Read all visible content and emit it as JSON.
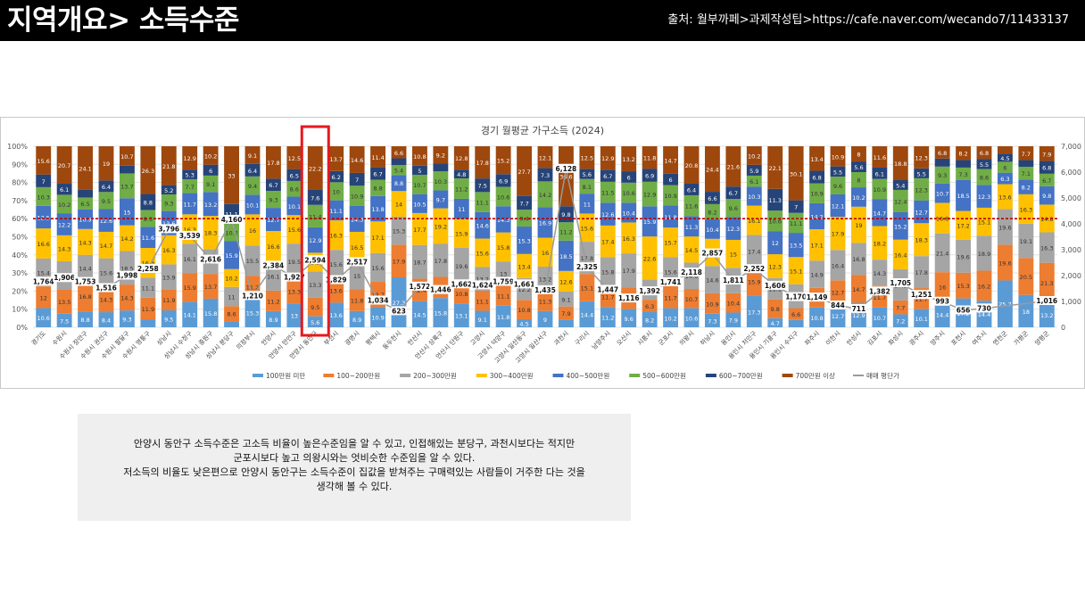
{
  "header": {
    "title": "지역개요> 소득수준",
    "source": "출처: 월부까페>과제작성팁>https://cafe.naver.com/wecando7/11433137"
  },
  "note": {
    "lines": [
      "안양시 동안구 소득수준은 고소득 비율이 높은수준임을 알 수 있고, 인접해있는 분당구, 과천시보다는 적지만",
      "군포시보다 높고 의왕시와는 엇비슷한 수준임을 알 수 있다.",
      "저소득의 비율도 낮은편으로 안양시 동안구는 소득수준이 집값을 받쳐주는 구매력있는 사람들이 거주한 다는 것을",
      "생각해 볼 수 있다."
    ]
  },
  "colors": {
    "highlight": "#e8181d",
    "avg_line": "#9a9a9a",
    "reference_line": "#c00000"
  },
  "chart_data": {
    "type": "bar",
    "stacked": true,
    "title": "경기 월평균 가구소득 (2024)",
    "y_left": {
      "ticks": [
        "0%",
        "10%",
        "20%",
        "30%",
        "40%",
        "50%",
        "60%",
        "70%",
        "80%",
        "90%",
        "100%"
      ],
      "range": [
        0,
        100
      ]
    },
    "y_right": {
      "ticks": [
        "0",
        "1,000",
        "2,000",
        "3,000",
        "4,000",
        "5,000",
        "6,000",
        "7,000"
      ],
      "range": [
        0,
        7000
      ]
    },
    "reference_line_pct": 60,
    "highlight_category": "안양시 동안구",
    "categories": [
      "경기도",
      "수원시",
      "수원시 장안구",
      "수원시 권선구",
      "수원시 팔달구",
      "수원시 영통구",
      "성남시",
      "성남시 수정구",
      "성남시 중원구",
      "성남시 분당구",
      "의정부시",
      "안양시",
      "안양시 만안구",
      "안양시 동안구",
      "부천시",
      "광명시",
      "평택시",
      "동두천시",
      "안산시",
      "안산시 상록구",
      "안산시 단원구",
      "고양시",
      "고양시 덕양구",
      "고양시 일산동구",
      "고양시 일산서구",
      "과천시",
      "구리시",
      "남양주시",
      "오산시",
      "시흥시",
      "군포시",
      "의왕시",
      "하남시",
      "용인시",
      "용인시 처인구",
      "용인시 기흥구",
      "용인시 수지구",
      "파주시",
      "이천시",
      "안성시",
      "김포시",
      "화성시",
      "광주시",
      "양주시",
      "포천시",
      "여주시",
      "연천군",
      "가평군",
      "양평군"
    ],
    "series": [
      {
        "name": "100만원 미만",
        "color": "#5b9bd5",
        "values": [
          10.6,
          7.5,
          8.8,
          8.4,
          9.3,
          4.4,
          9.5,
          14.1,
          15.8,
          3.5,
          15.3,
          8.9,
          13.0,
          5.6,
          13.6,
          8.9,
          10.9,
          27.3,
          14.5,
          15.8,
          13.1,
          9.1,
          11.8,
          4.5,
          9.0,
          4.8,
          14.4,
          11.2,
          9.6,
          8.2,
          10.2,
          10.6,
          7.3,
          7.9,
          17.3,
          4.7,
          4.1,
          10.8,
          12.7,
          12.9,
          10.7,
          7.2,
          10.1,
          14.4,
          17.2,
          14.4,
          25.7,
          18.0,
          13.2
        ]
      },
      {
        "name": "100~200만원",
        "color": "#ed7d31",
        "values": [
          12.0,
          13.5,
          16.8,
          14.3,
          14.3,
          11.9,
          11.9,
          15.9,
          13.7,
          8.6,
          11.2,
          11.2,
          13.3,
          9.5,
          13.6,
          11.8,
          13.7,
          17.9,
          12.4,
          11.4,
          10.8,
          11.1,
          11.1,
          10.8,
          11.3,
          7.9,
          15.1,
          11.7,
          11.5,
          6.3,
          11.7,
          10.7,
          10.9,
          10.4,
          15.9,
          9.8,
          6.6,
          10.7,
          12.7,
          14.7,
          11.7,
          7.7,
          11.7,
          16.0,
          15.3,
          16.2,
          19.6,
          20.5,
          21.3
        ]
      },
      {
        "name": "200~300만원",
        "color": "#a5a5a5",
        "values": [
          15.4,
          15.5,
          14.4,
          15.6,
          18.5,
          11.1,
          13.9,
          16.1,
          13.7,
          11.0,
          15.5,
          16.1,
          19.5,
          13.3,
          15.6,
          15.0,
          15.6,
          15.3,
          18.7,
          17.8,
          19.6,
          13.2,
          13.0,
          12.2,
          13.2,
          9.1,
          17.8,
          15.8,
          17.9,
          10.7,
          15.6,
          14.6,
          14.6,
          13.6,
          17.4,
          11.1,
          13.3,
          14.9,
          16.4,
          16.8,
          14.3,
          17.3,
          17.8,
          21.4,
          19.6,
          18.9,
          19.6,
          19.1,
          16.3
        ]
      },
      {
        "name": "300~400만원",
        "color": "#ffc000",
        "values": [
          16.6,
          14.3,
          14.3,
          14.7,
          14.2,
          16.3,
          16.3,
          16.3,
          18.3,
          10.2,
          16.0,
          16.6,
          15.6,
          9.5,
          16.3,
          16.5,
          17.1,
          14.0,
          17.7,
          19.2,
          15.9,
          15.6,
          15.8,
          13.4,
          16.0,
          12.6,
          15.6,
          17.4,
          16.3,
          22.6,
          15.7,
          14.5,
          14.6,
          15.0,
          16.1,
          12.3,
          15.1,
          17.1,
          17.9,
          19.0,
          18.2,
          16.4,
          18.3,
          16.8,
          17.2,
          15.1,
          13.6,
          16.3,
          14.8
        ]
      },
      {
        "name": "400~500만원",
        "color": "#4472c4",
        "values": [
          12.5,
          12.2,
          10.9,
          12.6,
          15.0,
          11.6,
          13.6,
          11.7,
          13.2,
          15.9,
          10.1,
          12.7,
          10.1,
          12.9,
          11.1,
          14.3,
          13.8,
          8.8,
          10.5,
          9.7,
          11.0,
          14.6,
          14.3,
          15.3,
          16.9,
          18.5,
          11.0,
          12.6,
          10.4,
          15.9,
          11.8,
          11.3,
          10.4,
          12.3,
          10.3,
          12.0,
          13.5,
          14.2,
          12.1,
          10.2,
          14.7,
          15.2,
          12.7,
          10.7,
          18.5,
          12.3,
          6.3,
          8.2,
          9.8
        ]
      },
      {
        "name": "500~600만원",
        "color": "#70ad47",
        "values": [
          10.3,
          10.2,
          6.5,
          9.5,
          13.7,
          9.3,
          9.3,
          7.7,
          9.1,
          10.2,
          9.4,
          9.3,
          8.6,
          11.4,
          10.0,
          10.9,
          8.8,
          5.4,
          10.7,
          10.3,
          11.2,
          11.1,
          10.6,
          9.4,
          14.2,
          11.2,
          8.1,
          11.5,
          10.6,
          12.9,
          10.9,
          11.6,
          8.2,
          9.6,
          6.1,
          10.6,
          11.1,
          10.9,
          9.6,
          8.0,
          10.9,
          12.4,
          12.3,
          9.3,
          7.3,
          8.6,
          6.0,
          7.1,
          6.7
        ]
      },
      {
        "name": "600~700만원",
        "color": "#264478",
        "values": [
          7.0,
          6.1,
          4.2,
          6.4,
          4.3,
          8.8,
          5.2,
          5.3,
          6.0,
          11.1,
          6.4,
          6.7,
          6.5,
          7.6,
          6.2,
          7.0,
          6.7,
          3.7,
          5.0,
          4.3,
          4.8,
          7.5,
          6.9,
          7.7,
          7.3,
          9.8,
          5.6,
          6.7,
          6.0,
          6.9,
          6.0,
          6.4,
          6.6,
          6.7,
          5.9,
          11.3,
          7.0,
          6.8,
          5.5,
          5.6,
          6.1,
          5.4,
          5.5,
          4.4,
          4.5,
          5.5,
          4.5,
          3.7,
          6.8
        ]
      },
      {
        "name": "700만원 이상",
        "color": "#9e480e",
        "values": [
          15.6,
          20.7,
          24.1,
          19.0,
          10.7,
          26.3,
          21.8,
          12.9,
          10.2,
          33.0,
          9.1,
          17.8,
          12.5,
          22.2,
          13.7,
          14.6,
          11.4,
          6.6,
          10.8,
          9.2,
          12.8,
          17.8,
          15.2,
          27.7,
          12.1,
          36.6,
          12.5,
          12.9,
          13.2,
          11.8,
          14.7,
          20.8,
          24.4,
          21.6,
          10.2,
          22.1,
          30.1,
          13.4,
          10.9,
          8.0,
          11.6,
          18.8,
          12.3,
          6.8,
          8.2,
          6.8,
          4.0,
          7.7,
          7.9
        ]
      }
    ],
    "line_series": {
      "name": "매매 평단가",
      "color": "#9a9a9a",
      "axis": "right",
      "values": [
        1764,
        1906,
        1753,
        1516,
        1998,
        2258,
        3796,
        3539,
        2616,
        4160,
        1210,
        2384,
        1927,
        2594,
        1829,
        2517,
        1034,
        623,
        1572,
        1446,
        1662,
        1624,
        1759,
        1661,
        1435,
        6128,
        2325,
        1447,
        1116,
        1392,
        1741,
        2118,
        2857,
        1811,
        2252,
        1606,
        1170,
        1149,
        844,
        711,
        1382,
        1705,
        1251,
        993,
        656,
        730,
        null,
        null,
        1016
      ],
      "labels": [
        "1,764",
        "1,906",
        "1,753",
        "1,516",
        "1,998",
        "2,258",
        "3,796",
        "3,539",
        "2,616",
        "4,160",
        "1,210",
        "2,384",
        "1,927",
        "2,594",
        "1,829",
        "2,517",
        "1,034",
        "623",
        "1,572",
        "1,446",
        "1,662",
        "1,624",
        "1,759",
        "1,661",
        "1,435",
        "6,128",
        "2,325",
        "1,447",
        "1,116",
        "1,392",
        "1,741",
        "2,118",
        "2,857",
        "1,811",
        "2,252",
        "1,606",
        "1,170",
        "1,149",
        "844",
        "711",
        "1,382",
        "1,705",
        "1,251",
        "993",
        "656",
        "730",
        "",
        "",
        "1,016"
      ]
    },
    "legend": {
      "placement": "bottom"
    }
  }
}
